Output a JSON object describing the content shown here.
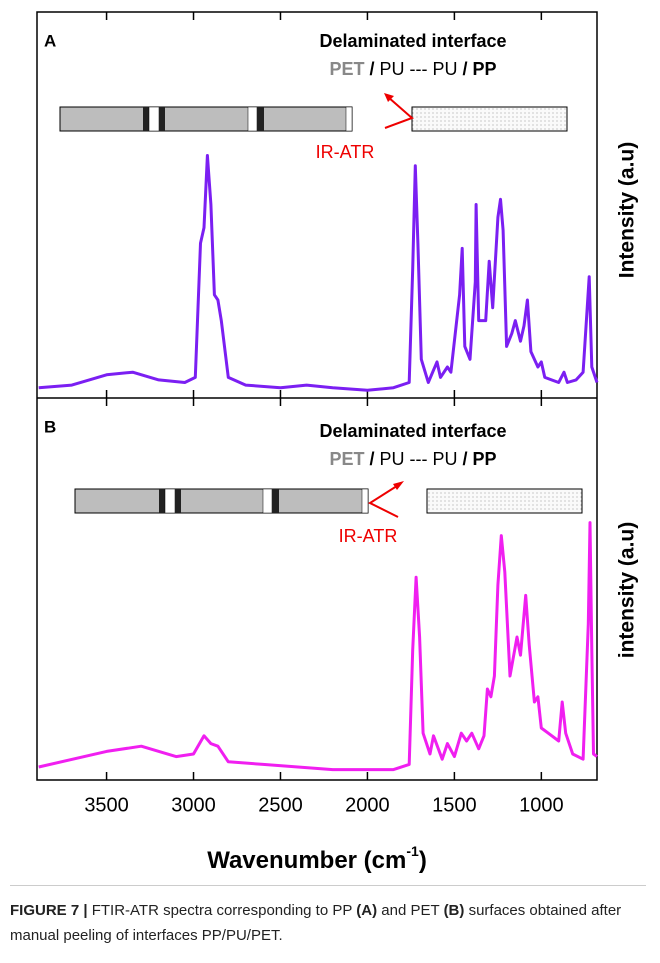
{
  "chart_data": [
    {
      "type": "line",
      "panel_label": "A",
      "title": "Delaminated interface",
      "subtitle": [
        "PET",
        "/",
        "PU --- PU",
        "/",
        "PP"
      ],
      "annotation": "IR-ATR",
      "ylabel": "Intensity (a.u)",
      "color": "#7b1ff2",
      "xlim": [
        3900,
        680
      ],
      "xticks": [
        3500,
        3000,
        2500,
        2000,
        1500,
        1000
      ],
      "ylim": [
        0,
        100
      ],
      "x": [
        3890,
        3700,
        3500,
        3350,
        3200,
        3050,
        2990,
        2960,
        2940,
        2920,
        2900,
        2880,
        2860,
        2840,
        2800,
        2700,
        2500,
        2350,
        2200,
        2000,
        1850,
        1760,
        1740,
        1725,
        1710,
        1690,
        1650,
        1600,
        1580,
        1540,
        1520,
        1470,
        1455,
        1440,
        1410,
        1380,
        1375,
        1360,
        1320,
        1300,
        1280,
        1250,
        1235,
        1220,
        1200,
        1170,
        1150,
        1120,
        1100,
        1080,
        1060,
        1020,
        1000,
        980,
        900,
        870,
        850,
        800,
        760,
        725,
        710,
        690,
        680
      ],
      "values": [
        4,
        5,
        9,
        10,
        7,
        6,
        8,
        60,
        66,
        94,
        75,
        40,
        38,
        30,
        8,
        5,
        4,
        5,
        4,
        3,
        4,
        6,
        50,
        90,
        60,
        15,
        6,
        14,
        8,
        12,
        10,
        40,
        58,
        20,
        15,
        45,
        75,
        30,
        30,
        53,
        35,
        70,
        77,
        65,
        20,
        25,
        30,
        22,
        28,
        38,
        18,
        12,
        14,
        8,
        6,
        10,
        6,
        7,
        10,
        47,
        12,
        8,
        6
      ]
    },
    {
      "type": "line",
      "panel_label": "B",
      "title": "Delaminated interface",
      "subtitle": [
        "PET",
        "/",
        "PU --- PU",
        "/",
        "PP"
      ],
      "annotation": "IR-ATR",
      "ylabel": "intensity (a.u)",
      "color": "#f01ff0",
      "xlim": [
        3900,
        680
      ],
      "xticks": [
        3500,
        3000,
        2500,
        2000,
        1500,
        1000
      ],
      "ylim": [
        0,
        100
      ],
      "xlabel": [
        "Wavenumber (cm",
        "-1",
        ")"
      ],
      "x": [
        3890,
        3500,
        3300,
        3100,
        3000,
        2940,
        2900,
        2860,
        2800,
        2600,
        2400,
        2200,
        2000,
        1850,
        1760,
        1740,
        1720,
        1700,
        1680,
        1640,
        1620,
        1570,
        1540,
        1500,
        1460,
        1430,
        1400,
        1360,
        1330,
        1310,
        1290,
        1270,
        1250,
        1230,
        1210,
        1180,
        1140,
        1120,
        1090,
        1070,
        1040,
        1020,
        1000,
        960,
        900,
        880,
        860,
        820,
        760,
        730,
        720,
        710,
        700,
        680
      ],
      "values": [
        5,
        11,
        13,
        9,
        10,
        17,
        14,
        13,
        7,
        6,
        5,
        4,
        4,
        4,
        6,
        50,
        78,
        55,
        18,
        10,
        17,
        8,
        14,
        9,
        18,
        15,
        18,
        12,
        17,
        35,
        32,
        40,
        75,
        94,
        80,
        40,
        55,
        48,
        71,
        52,
        30,
        32,
        20,
        18,
        15,
        30,
        18,
        10,
        8,
        60,
        99,
        50,
        10,
        9
      ]
    }
  ],
  "caption": [
    "FIGURE 7 |",
    "FTIR-ATR spectra corresponding to PP",
    "(A)",
    "and PET",
    "(B)",
    "surfaces obtained after manual peeling of interfaces PP/PU/PET."
  ]
}
